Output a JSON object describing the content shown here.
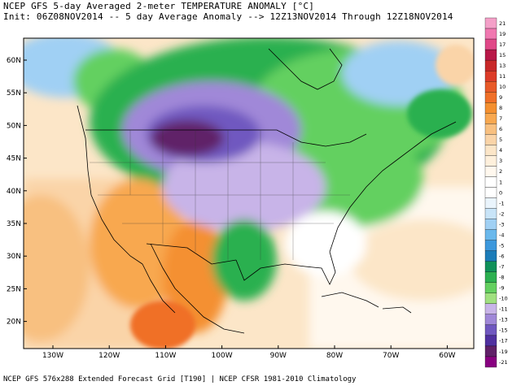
{
  "header": {
    "title": "NCEP GFS 5-day Averaged 2-meter TEMPERATURE ANOMALY [°C]",
    "subtitle": "Init: 06Z08NOV2014 -- 5 day Average Anomaly --> 12Z13NOV2014 Through 12Z18NOV2014"
  },
  "footer": "NCEP GFS 576x288 Extended Forecast Grid [T190] | NCEP CFSR 1981-2010 Climatology",
  "map": {
    "lat_labels": [
      "60N",
      "55N",
      "50N",
      "45N",
      "40N",
      "35N",
      "30N",
      "25N",
      "20N"
    ],
    "lon_labels": [
      "130W",
      "120W",
      "110W",
      "100W",
      "90W",
      "80W",
      "70W",
      "60W"
    ]
  },
  "colorbar": {
    "labels": [
      "21",
      "19",
      "17",
      "15",
      "13",
      "11",
      "10",
      "9",
      "8",
      "7",
      "6",
      "5",
      "4",
      "3",
      "2",
      "1",
      "0",
      "-1",
      "-2",
      "-3",
      "-4",
      "-5",
      "-6",
      "-7",
      "-8",
      "-9",
      "-10",
      "-11",
      "-13",
      "-15",
      "-17",
      "-19",
      "-21"
    ],
    "colors": [
      "#f4a0c8",
      "#f078b0",
      "#e04888",
      "#b81848",
      "#c82828",
      "#dc3c28",
      "#e85a28",
      "#f07028",
      "#f49030",
      "#f8a850",
      "#f8c080",
      "#fad4a8",
      "#fce6c8",
      "#fef0dc",
      "#fff8ee",
      "#ffffff",
      "#ffffff",
      "#eaf4fc",
      "#c8e4f8",
      "#a0d0f4",
      "#6ab8ec",
      "#3c98dc",
      "#1c7cb8",
      "#10905a",
      "#2cb050",
      "#64d060",
      "#a0e080",
      "#c8b4e8",
      "#a088d8",
      "#7058c0",
      "#5030a0",
      "#602068",
      "#880080"
    ]
  }
}
